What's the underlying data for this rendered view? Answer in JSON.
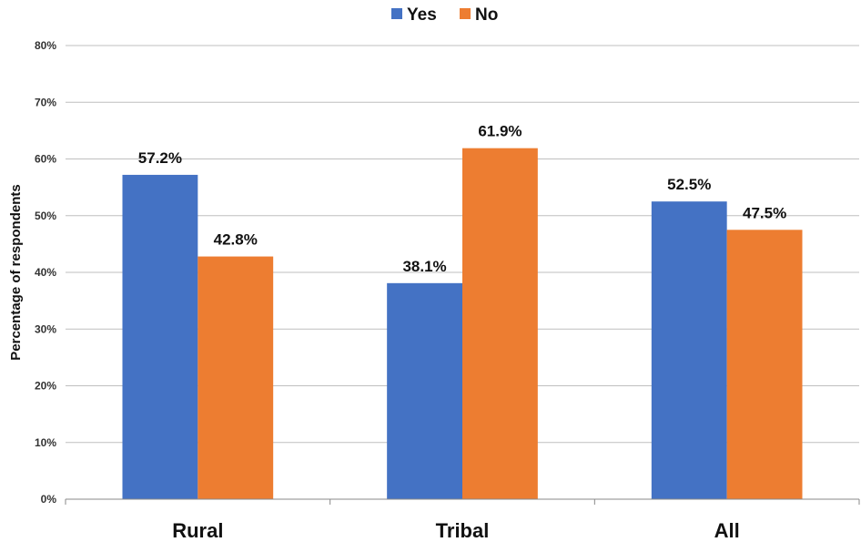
{
  "chart_data": {
    "type": "bar",
    "categories": [
      "Rural",
      "Tribal",
      "All"
    ],
    "series": [
      {
        "name": "Yes",
        "values": [
          57.2,
          38.1,
          52.5
        ],
        "color": "#4472C4"
      },
      {
        "name": "No",
        "values": [
          42.8,
          61.9,
          47.5
        ],
        "color": "#ED7D31"
      }
    ],
    "data_labels": [
      [
        "57.2%",
        "38.1%",
        "52.5%"
      ],
      [
        "42.8%",
        "61.9%",
        "47.5%"
      ]
    ],
    "ylabel": "Percentage of respondents",
    "xlabel": "",
    "title": "",
    "ylim": [
      0,
      80
    ],
    "yticks": [
      0,
      10,
      20,
      30,
      40,
      50,
      60,
      70,
      80
    ],
    "ytick_labels": [
      "0%",
      "10%",
      "20%",
      "30%",
      "40%",
      "50%",
      "60%",
      "70%",
      "80%"
    ],
    "grid": true,
    "legend_position": "top-center",
    "gridline_color": "#BFBFBF"
  }
}
